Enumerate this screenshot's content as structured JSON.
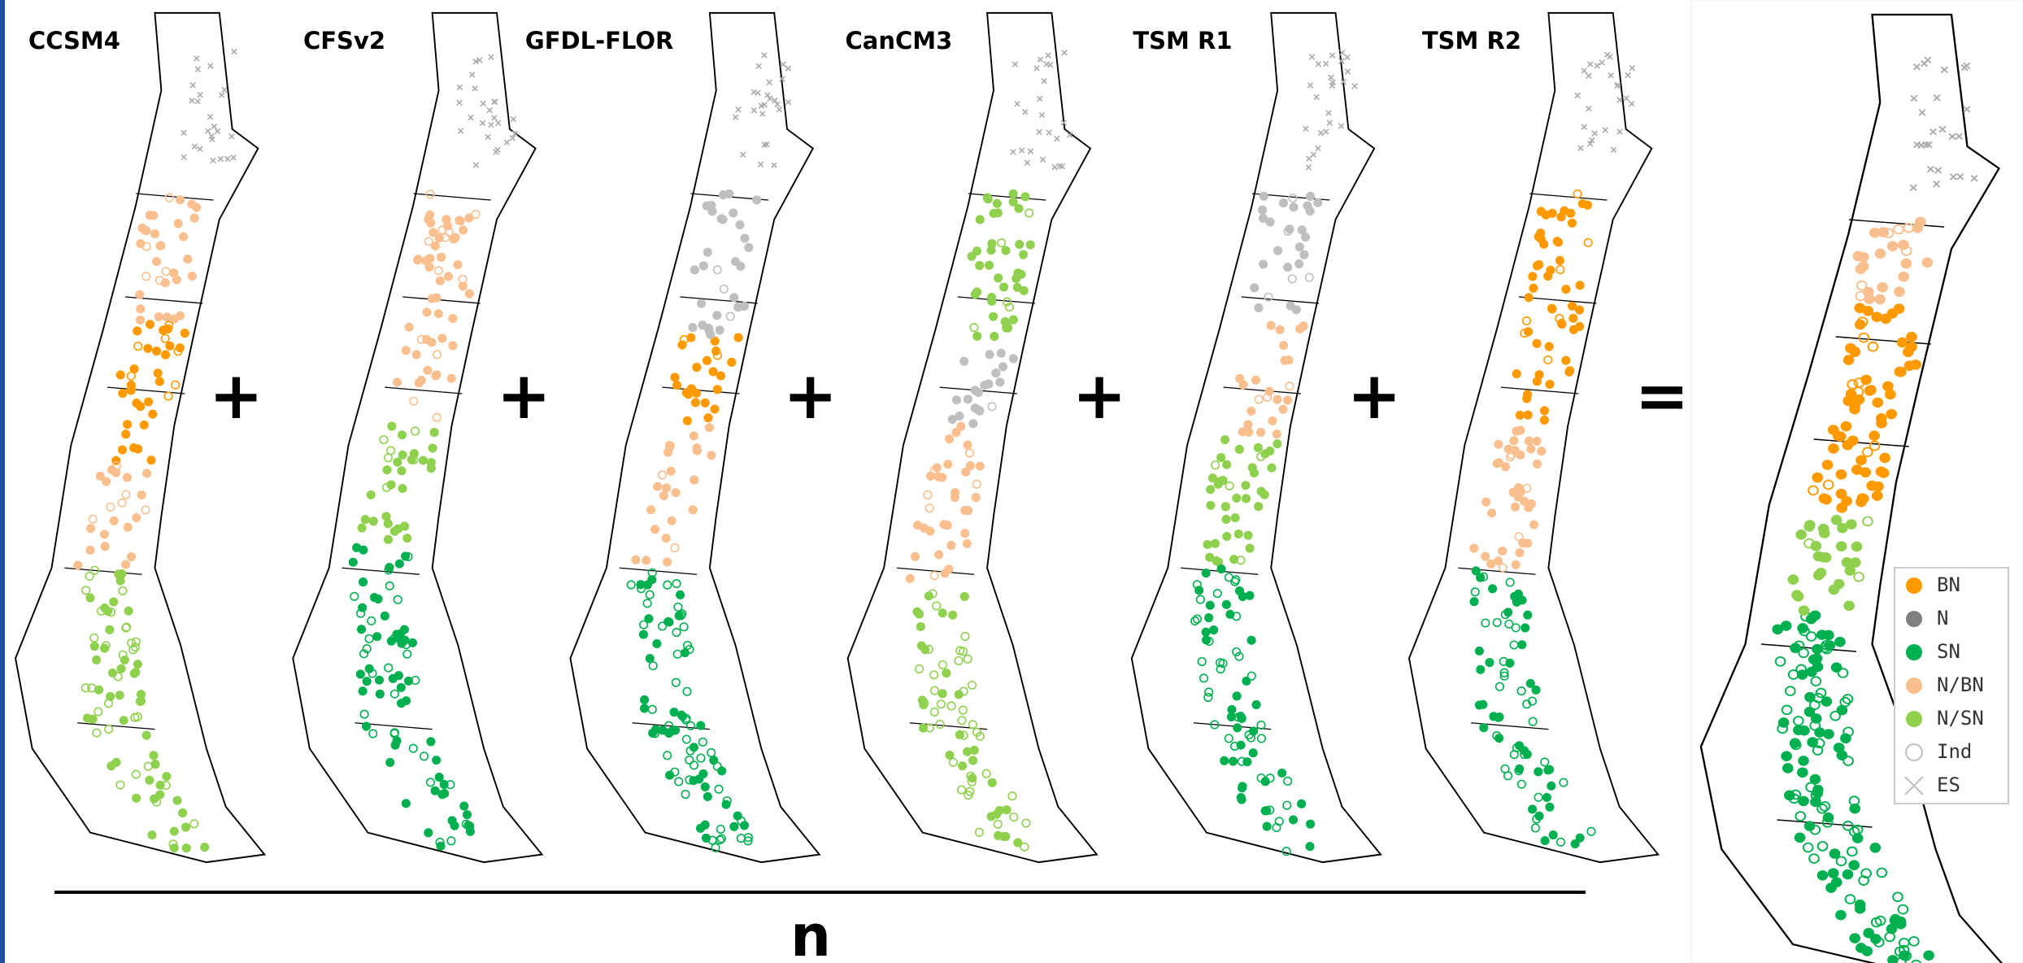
{
  "models": [
    {
      "label": "CCSM4"
    },
    {
      "label": "CFSv2"
    },
    {
      "label": "GFDL-FLOR"
    },
    {
      "label": "CanCM3"
    },
    {
      "label": "TSM R1"
    },
    {
      "label": "TSM R2"
    }
  ],
  "operators": [
    "+",
    "+",
    "+",
    "+",
    "+",
    "="
  ],
  "denominator": "n",
  "legend": {
    "items": [
      {
        "label": "BN",
        "color": "#ff9900",
        "marker": "circle"
      },
      {
        "label": "N",
        "color": "#7f7f7f",
        "marker": "circle"
      },
      {
        "label": "SN",
        "color": "#00b050",
        "marker": "circle"
      },
      {
        "label": "N/BN",
        "color": "#f9bf8f",
        "marker": "circle"
      },
      {
        "label": "N/SN",
        "color": "#8fd14f",
        "marker": "circle"
      },
      {
        "label": "Ind",
        "color": "#bfbfbf",
        "marker": "ring"
      },
      {
        "label": "ES",
        "color": "#bfbfbf",
        "marker": "cross"
      }
    ]
  }
}
